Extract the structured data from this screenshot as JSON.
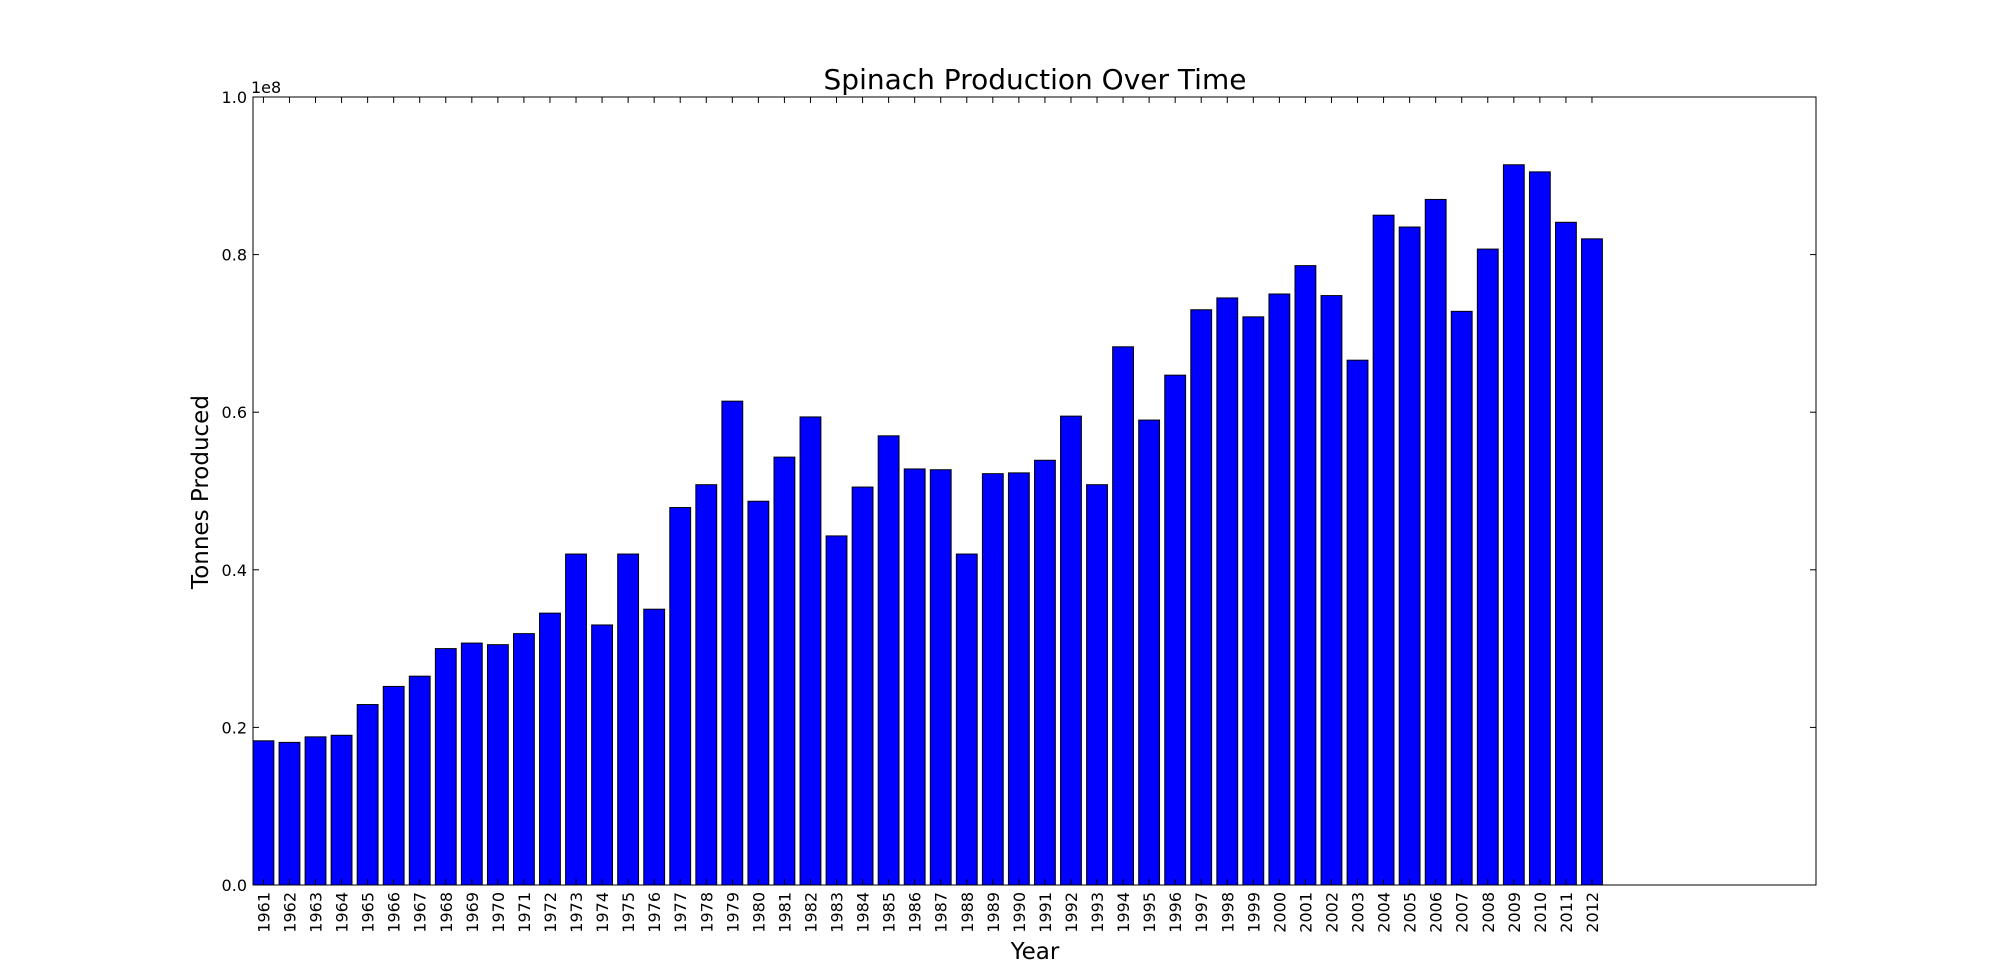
{
  "chart_data": {
    "type": "bar",
    "title": "Spinach Production Over Time",
    "xlabel": "Year",
    "ylabel": "Tonnes Produced",
    "y_offset_label": "1e8",
    "ylim": [
      0.0,
      1.0
    ],
    "yticks": [
      "0.0",
      "0.2",
      "0.4",
      "0.6",
      "0.8",
      "1.0"
    ],
    "value_scale": "1e8",
    "bar_color": "#0000ff",
    "edge_color": "#000000",
    "grid": false,
    "categories": [
      "1961",
      "1962",
      "1963",
      "1964",
      "1965",
      "1966",
      "1967",
      "1968",
      "1969",
      "1970",
      "1971",
      "1972",
      "1973",
      "1974",
      "1975",
      "1976",
      "1977",
      "1978",
      "1979",
      "1980",
      "1981",
      "1982",
      "1983",
      "1984",
      "1985",
      "1986",
      "1987",
      "1988",
      "1989",
      "1990",
      "1991",
      "1992",
      "1993",
      "1994",
      "1995",
      "1996",
      "1997",
      "1998",
      "1999",
      "2000",
      "2001",
      "2002",
      "2003",
      "2004",
      "2005",
      "2006",
      "2007",
      "2008",
      "2009",
      "2010",
      "2011",
      "2012"
    ],
    "values": [
      0.183,
      0.181,
      0.188,
      0.19,
      0.229,
      0.252,
      0.265,
      0.3,
      0.307,
      0.305,
      0.319,
      0.345,
      0.42,
      0.33,
      0.42,
      0.35,
      0.479,
      0.508,
      0.614,
      0.487,
      0.543,
      0.594,
      0.443,
      0.505,
      0.57,
      0.528,
      0.527,
      0.42,
      0.522,
      0.523,
      0.539,
      0.595,
      0.508,
      0.683,
      0.59,
      0.647,
      0.73,
      0.745,
      0.721,
      0.75,
      0.786,
      0.748,
      0.666,
      0.85,
      0.835,
      0.87,
      0.728,
      0.807,
      0.914,
      0.905,
      0.841,
      0.82
    ]
  }
}
